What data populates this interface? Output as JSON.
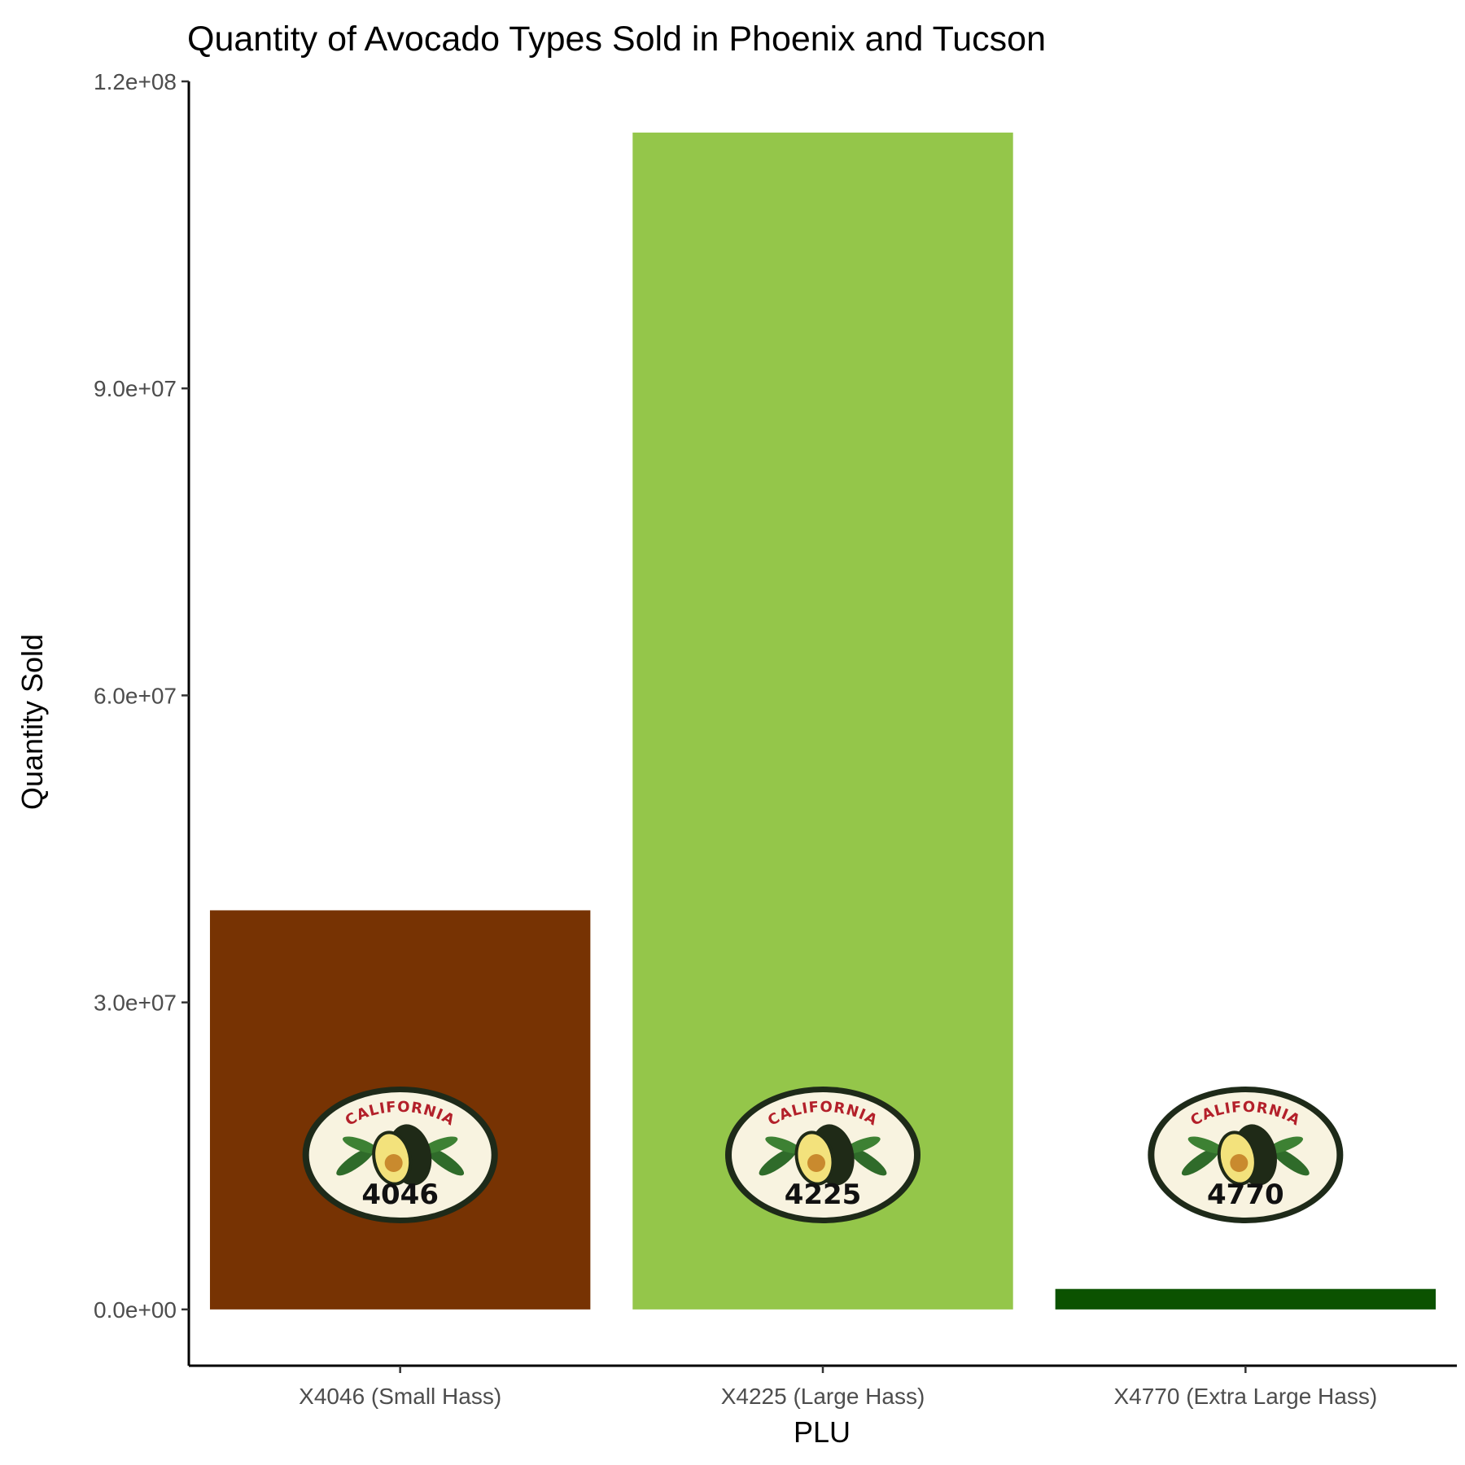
{
  "chart_data": {
    "type": "bar",
    "title": "Quantity of Avocado Types Sold in Phoenix and Tucson",
    "xlabel": "PLU",
    "ylabel": "Quantity Sold",
    "categories": [
      "X4046 (Small Hass)",
      "X4225 (Large Hass)",
      "X4770 (Extra Large Hass)"
    ],
    "values": [
      39000000,
      115000000,
      2000000
    ],
    "colors": [
      "#773303",
      "#94c64a",
      "#0b5200"
    ],
    "ylim": [
      -5500000,
      120000000
    ],
    "yticks": [
      0,
      30000000,
      60000000,
      90000000,
      120000000
    ],
    "ytick_labels": [
      "0.0e+00",
      "3.0e+07",
      "6.0e+07",
      "9.0e+07",
      "1.2e+08"
    ],
    "grid": false,
    "legend": "none"
  },
  "stickers": [
    {
      "top_text": "CALIFORNIA",
      "number": "4046",
      "icon": "avocado-icon"
    },
    {
      "top_text": "CALIFORNIA",
      "number": "4225",
      "icon": "avocado-icon"
    },
    {
      "top_text": "CALIFORNIA",
      "number": "4770",
      "icon": "avocado-icon"
    }
  ]
}
